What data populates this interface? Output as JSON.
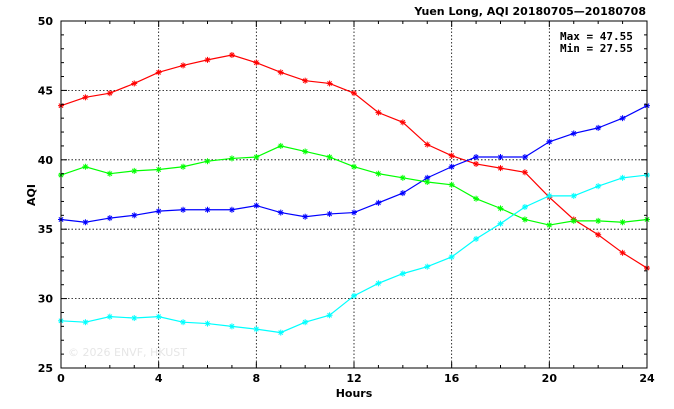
{
  "chart_data": {
    "type": "line",
    "title": "Yuen Long, AQI 20180705—20180708",
    "xlabel": "Hours",
    "ylabel": "AQI",
    "xlim": [
      0,
      24
    ],
    "ylim": [
      25,
      50
    ],
    "xticks": [
      0,
      4,
      8,
      12,
      16,
      20,
      24
    ],
    "yticks": [
      25,
      30,
      35,
      40,
      45,
      50
    ],
    "grid": true,
    "stats": [
      "Max = 47.55",
      "Min = 27.55"
    ],
    "watermark": "© 2026  ENVF, HKUST",
    "x": [
      0,
      1,
      2,
      3,
      4,
      5,
      6,
      7,
      8,
      9,
      10,
      11,
      12,
      13,
      14,
      15,
      16,
      17,
      18,
      19,
      20,
      21,
      22,
      23,
      24
    ],
    "series": [
      {
        "color": "#ff0000",
        "values": [
          43.9,
          44.5,
          44.8,
          45.5,
          46.3,
          46.8,
          47.2,
          47.55,
          47.0,
          46.3,
          45.7,
          45.5,
          44.8,
          43.4,
          42.7,
          41.1,
          40.3,
          39.7,
          39.4,
          39.1,
          37.3,
          35.7,
          34.6,
          33.3,
          32.2
        ]
      },
      {
        "color": "#0000ff",
        "values": [
          35.7,
          35.5,
          35.8,
          36.0,
          36.3,
          36.4,
          36.4,
          36.4,
          36.7,
          36.2,
          35.9,
          36.1,
          36.2,
          36.9,
          37.6,
          38.7,
          39.5,
          40.2,
          40.2,
          40.2,
          41.3,
          41.9,
          42.3,
          43.0,
          43.9
        ]
      },
      {
        "color": "#00ff00",
        "values": [
          38.9,
          39.5,
          39.0,
          39.2,
          39.3,
          39.5,
          39.9,
          40.1,
          40.2,
          41.0,
          40.6,
          40.2,
          39.5,
          39.0,
          38.7,
          38.4,
          38.2,
          37.2,
          36.5,
          35.7,
          35.3,
          35.6,
          35.6,
          35.5,
          35.7
        ]
      },
      {
        "color": "#00ffff",
        "values": [
          28.4,
          28.3,
          28.7,
          28.6,
          28.7,
          28.3,
          28.2,
          28.0,
          27.8,
          27.55,
          28.3,
          28.8,
          30.2,
          31.1,
          31.8,
          32.3,
          33.0,
          34.3,
          35.4,
          36.6,
          37.4,
          37.4,
          38.1,
          38.7,
          38.9
        ]
      }
    ]
  }
}
